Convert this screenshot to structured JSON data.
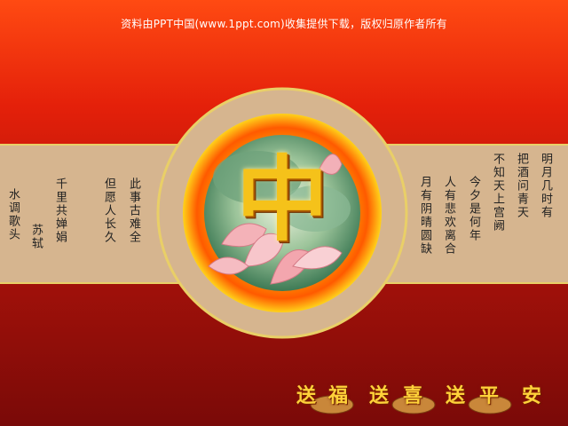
{
  "header": {
    "copyright": "资料由PPT中国(www.1ppt.com)收集提供下载，版权归原作者所有"
  },
  "poem": {
    "title": "水调歌头",
    "author": "苏轼",
    "left_lines": [
      "千里共婵娟",
      "但愿人长久",
      "此事古难全"
    ],
    "right_lines": [
      "月有阴晴圆缺",
      "人有悲欢离合",
      "今夕是何年",
      "不知天上宫阙",
      "把酒问青天",
      "明月几时有"
    ]
  },
  "emblem": {
    "glyph": "中"
  },
  "footer": {
    "chars": [
      "送",
      "福",
      "送",
      "喜",
      "送",
      "平",
      "安"
    ]
  },
  "colors": {
    "bg_top": "#ff4a12",
    "bg_bottom": "#7a0a08",
    "band": "#d6b58f",
    "ring_outer": "#ffd21a",
    "ring_inner": "#ff6a00",
    "glyph": "#f5c21a"
  }
}
